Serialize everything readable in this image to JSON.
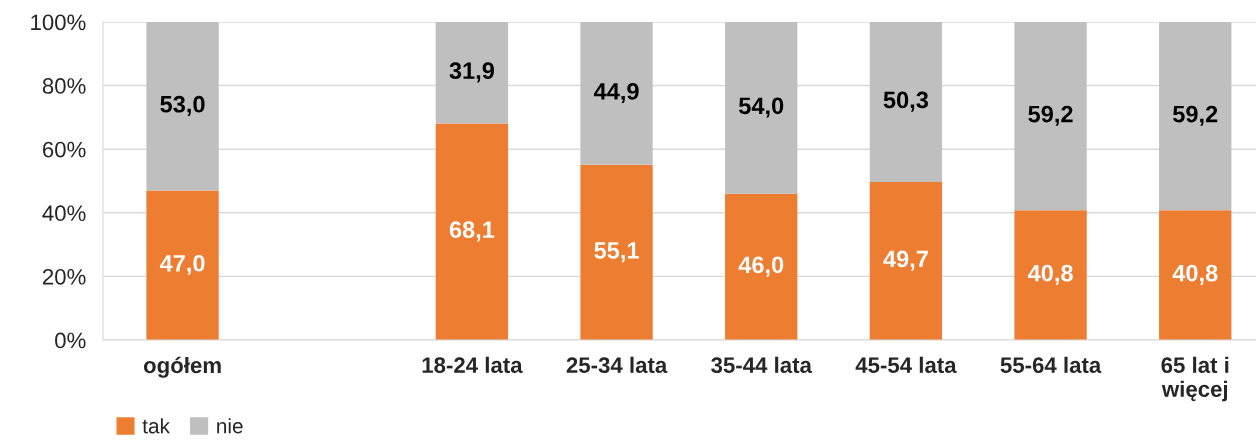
{
  "chart_data": {
    "type": "bar",
    "stacked": true,
    "categories": [
      "ogółem",
      null,
      "18-24 lata",
      "25-34 lata",
      "35-44 lata",
      "45-54 lata",
      "55-64 lata",
      "65 lat i\nwięcej"
    ],
    "series": [
      {
        "name": "tak",
        "color": "#ed7d31",
        "values": [
          47.0,
          null,
          68.1,
          55.1,
          46.0,
          49.7,
          40.8,
          40.8
        ],
        "value_labels": [
          "47,0",
          null,
          "68,1",
          "55,1",
          "46,0",
          "49,7",
          "40,8",
          "40,8"
        ]
      },
      {
        "name": "nie",
        "color": "#bfbfbf",
        "values": [
          53.0,
          null,
          31.9,
          44.9,
          54.0,
          50.3,
          59.2,
          59.2
        ],
        "value_labels": [
          "53,0",
          null,
          "31,9",
          "44,9",
          "54,0",
          "50,3",
          "59,2",
          "59,2"
        ]
      }
    ],
    "ylim": [
      0,
      100
    ],
    "yticks": [
      {
        "value": 0,
        "label": "0%"
      },
      {
        "value": 20,
        "label": "20%"
      },
      {
        "value": 40,
        "label": "40%"
      },
      {
        "value": 60,
        "label": "60%"
      },
      {
        "value": 80,
        "label": "80%"
      },
      {
        "value": 100,
        "label": "100%"
      }
    ],
    "grid": "y",
    "legend": "bottom left"
  }
}
